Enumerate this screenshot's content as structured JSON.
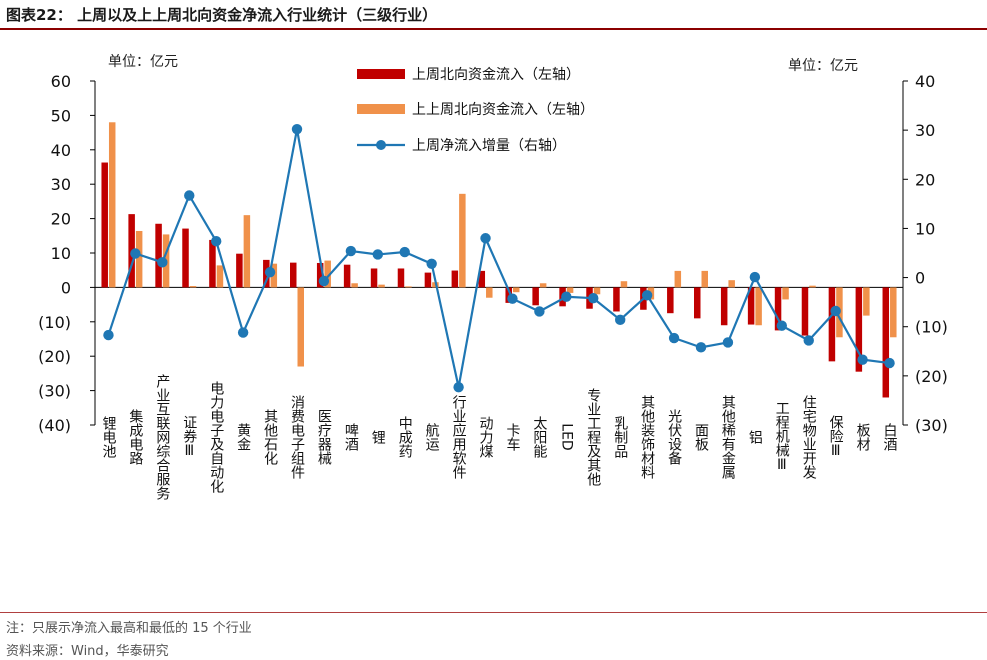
{
  "title": "图表22： 上周以及上上周北向资金净流入行业统计（三级行业）",
  "note": "注：只展示净流入最高和最低的 15 个行业",
  "source": "资料来源：Wind，华泰研究",
  "colors": {
    "series1": "#c00000",
    "series2": "#f0914a",
    "series3": "#1f77b4",
    "title_rule": "#8b0000"
  },
  "chart_data": {
    "type": "bar",
    "unit_left": "单位：亿元",
    "unit_right": "单位：亿元",
    "categories": [
      "锂电池",
      "集成电路",
      "产业互联网综合服务",
      "证券Ⅲ",
      "电力电子及自动化",
      "黄金",
      "其他石化",
      "消费电子组件",
      "医疗器械",
      "啤酒",
      "锂",
      "中成药",
      "航运",
      "行业应用软件",
      "动力煤",
      "卡车",
      "太阳能",
      "LED",
      "专业工程及其他",
      "乳制品",
      "其他装饰材料",
      "光伏设备",
      "面板",
      "其他稀有金属",
      "铝",
      "工程机械Ⅲ",
      "住宅物业开发",
      "保险Ⅲ",
      "板材",
      "白酒"
    ],
    "series": [
      {
        "name": "上周北向资金流入（左轴）",
        "axis": "left",
        "type": "bar",
        "values": [
          36.3,
          21.3,
          18.5,
          17.1,
          13.8,
          9.8,
          8.0,
          7.2,
          7.1,
          6.6,
          5.5,
          5.5,
          4.3,
          4.9,
          4.8,
          -4.5,
          -5.2,
          -5.5,
          -6.2,
          -7.0,
          -6.5,
          -7.5,
          -9.0,
          -11.0,
          -10.8,
          -12.5,
          -14.0,
          -21.5,
          -24.5,
          -32.0
        ]
      },
      {
        "name": "上上周北向资金流入（左轴）",
        "axis": "left",
        "type": "bar",
        "values": [
          48.0,
          16.4,
          15.4,
          0.4,
          6.4,
          21.0,
          6.9,
          -23.0,
          7.8,
          1.2,
          0.8,
          0.3,
          1.5,
          27.2,
          -3.0,
          -1.4,
          1.2,
          -1.6,
          -2.0,
          1.8,
          -3.5,
          4.8,
          4.8,
          2.1,
          -11.0,
          -3.5,
          0.5,
          -14.5,
          -8.2,
          -14.5
        ]
      },
      {
        "name": "上周净流入增量（右轴）",
        "axis": "right",
        "type": "line",
        "values": [
          -11.7,
          4.9,
          3.1,
          16.7,
          7.4,
          -11.2,
          1.1,
          30.2,
          -0.7,
          5.4,
          4.7,
          5.2,
          2.8,
          -22.3,
          8.0,
          -4.3,
          -6.9,
          -3.9,
          -4.2,
          -8.6,
          -3.6,
          -12.3,
          -14.2,
          -13.2,
          0.1,
          -9.8,
          -12.8,
          -6.8,
          -16.7,
          -17.4
        ]
      }
    ],
    "ylim_left": [
      -40,
      60
    ],
    "yticks_left": [
      "60",
      "50",
      "40",
      "30",
      "20",
      "10",
      "0",
      "(10)",
      "(20)",
      "(30)",
      "(40)"
    ],
    "ylim_right": [
      -30,
      40
    ],
    "yticks_right": [
      "40",
      "30",
      "20",
      "10",
      "0",
      "(10)",
      "(20)",
      "(30)"
    ],
    "legend_position": "top-center"
  }
}
